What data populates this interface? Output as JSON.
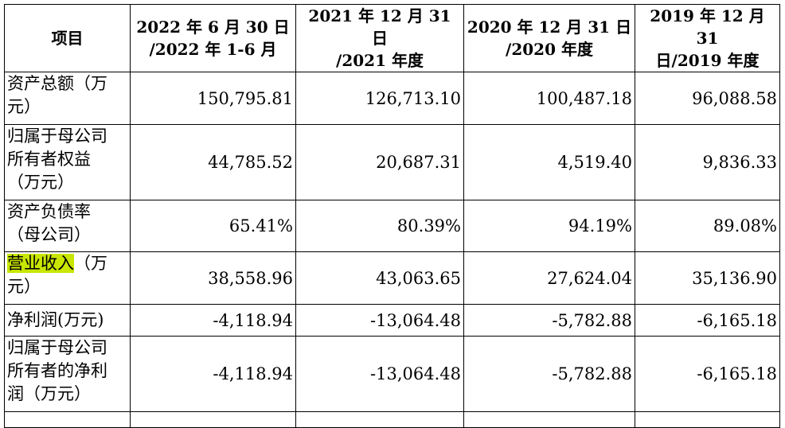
{
  "header": {
    "item": "项目",
    "col1": [
      "2022 年 6 月 30 日",
      "/2022 年 1-6 月"
    ],
    "col2": [
      "2021 年 12 月 31 日",
      "/2021 年度"
    ],
    "col3": [
      "2020 年 12 月 31 日",
      "/2020 年度"
    ],
    "col4": [
      "2019 年 12 月 31",
      "日/2019 年度"
    ]
  },
  "rows": [
    {
      "label": [
        "资产总额（万",
        "元）"
      ],
      "values": [
        "150,795.81",
        "126,713.10",
        "100,487.18",
        "96,088.58"
      ]
    },
    {
      "label": [
        "归属于母公司",
        "所有者权益",
        "（万元）"
      ],
      "values": [
        "44,785.52",
        "20,687.31",
        "4,519.40",
        "9,836.33"
      ]
    },
    {
      "label": [
        "资产负债率",
        "（母公司）"
      ],
      "values": [
        "65.41%",
        "80.39%",
        "94.19%",
        "89.08%"
      ]
    },
    {
      "label_highlight": "营业收入",
      "label_rest": "（万",
      "label_line2": "元）",
      "values": [
        "38,558.96",
        "43,063.65",
        "27,624.04",
        "35,136.90"
      ]
    },
    {
      "label": [
        "净利润(万元)"
      ],
      "values": [
        "-4,118.94",
        "-13,064.48",
        "-5,782.88",
        "-6,165.18"
      ]
    },
    {
      "label": [
        "归属于母公司",
        "所有者的净利",
        "润（万元）"
      ],
      "values": [
        "-4,118.94",
        "-13,064.48",
        "-5,782.88",
        "-6,165.18"
      ]
    }
  ]
}
